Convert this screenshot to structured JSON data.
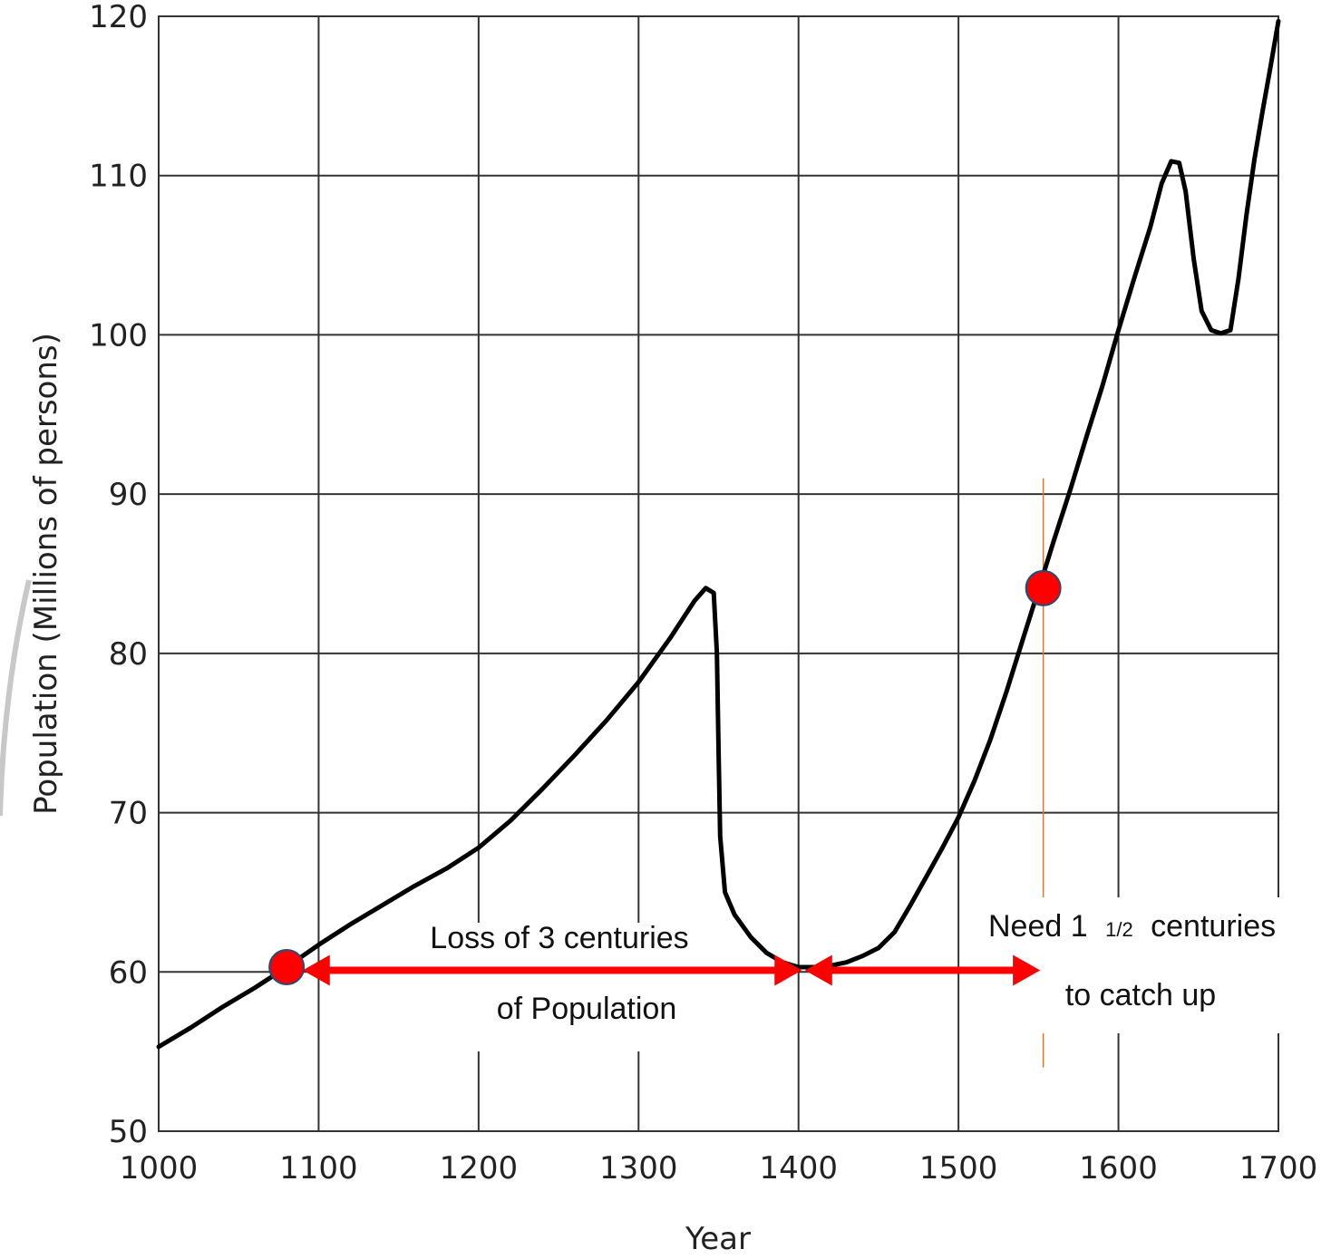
{
  "chart_data": {
    "type": "line",
    "title": "",
    "xlabel": "Year",
    "ylabel": "Population (Millions of persons)",
    "xlim": [
      1000,
      1700
    ],
    "ylim": [
      50,
      120
    ],
    "xticks": [
      1000,
      1100,
      1200,
      1300,
      1400,
      1500,
      1600,
      1700
    ],
    "yticks": [
      50,
      60,
      70,
      80,
      90,
      100,
      110,
      120
    ],
    "grid": true,
    "series": [
      {
        "color": "#000000",
        "points": [
          [
            1000,
            55.3
          ],
          [
            1020,
            56.5
          ],
          [
            1040,
            57.8
          ],
          [
            1060,
            59.0
          ],
          [
            1080,
            60.3
          ],
          [
            1100,
            61.7
          ],
          [
            1120,
            63.0
          ],
          [
            1140,
            64.2
          ],
          [
            1160,
            65.4
          ],
          [
            1180,
            66.5
          ],
          [
            1200,
            67.8
          ],
          [
            1220,
            69.5
          ],
          [
            1240,
            71.5
          ],
          [
            1260,
            73.6
          ],
          [
            1280,
            75.8
          ],
          [
            1300,
            78.2
          ],
          [
            1320,
            81.0
          ],
          [
            1335,
            83.3
          ],
          [
            1342,
            84.1
          ],
          [
            1347,
            83.8
          ],
          [
            1349,
            80.0
          ],
          [
            1350,
            74.0
          ],
          [
            1351,
            68.5
          ],
          [
            1354,
            65.0
          ],
          [
            1360,
            63.6
          ],
          [
            1370,
            62.2
          ],
          [
            1380,
            61.2
          ],
          [
            1390,
            60.6
          ],
          [
            1400,
            60.3
          ],
          [
            1410,
            60.3
          ],
          [
            1420,
            60.4
          ],
          [
            1430,
            60.6
          ],
          [
            1440,
            61.0
          ],
          [
            1450,
            61.5
          ],
          [
            1460,
            62.5
          ],
          [
            1470,
            64.2
          ],
          [
            1480,
            66.0
          ],
          [
            1490,
            67.8
          ],
          [
            1500,
            69.7
          ],
          [
            1510,
            72.0
          ],
          [
            1520,
            74.6
          ],
          [
            1530,
            77.6
          ],
          [
            1540,
            80.8
          ],
          [
            1550,
            84.0
          ],
          [
            1560,
            87.2
          ],
          [
            1570,
            90.3
          ],
          [
            1580,
            93.6
          ],
          [
            1590,
            96.8
          ],
          [
            1600,
            100.3
          ],
          [
            1610,
            103.6
          ],
          [
            1620,
            106.8
          ],
          [
            1627,
            109.5
          ],
          [
            1633,
            110.9
          ],
          [
            1638,
            110.8
          ],
          [
            1642,
            109.0
          ],
          [
            1647,
            104.8
          ],
          [
            1652,
            101.5
          ],
          [
            1658,
            100.3
          ],
          [
            1664,
            100.1
          ],
          [
            1670,
            100.3
          ],
          [
            1675,
            103.5
          ],
          [
            1680,
            107.5
          ],
          [
            1685,
            111.0
          ],
          [
            1690,
            114.0
          ],
          [
            1695,
            116.8
          ],
          [
            1700,
            119.7
          ]
        ]
      }
    ],
    "markers": [
      {
        "x": 1080,
        "y": 60.3,
        "color": "#ff0000"
      },
      {
        "x": 1553,
        "y": 84.1,
        "color": "#ff0000"
      }
    ],
    "reference_line": {
      "x": 1553,
      "y_from": 54,
      "y_to": 91,
      "color": "#d07a40"
    },
    "arrows": [
      {
        "from": 1090,
        "to": 1402,
        "y": 60.1,
        "color": "#ff0000"
      },
      {
        "from": 1404,
        "to": 1551,
        "y": 60.1,
        "color": "#ff0000"
      }
    ],
    "annotations": {
      "loss_line1": "Loss of 3 centuries",
      "loss_line2": "of Population",
      "need_prefix": "Need 1",
      "need_fraction": "1/2",
      "need_suffix": "centuries",
      "catch_up": "to catch up"
    }
  }
}
